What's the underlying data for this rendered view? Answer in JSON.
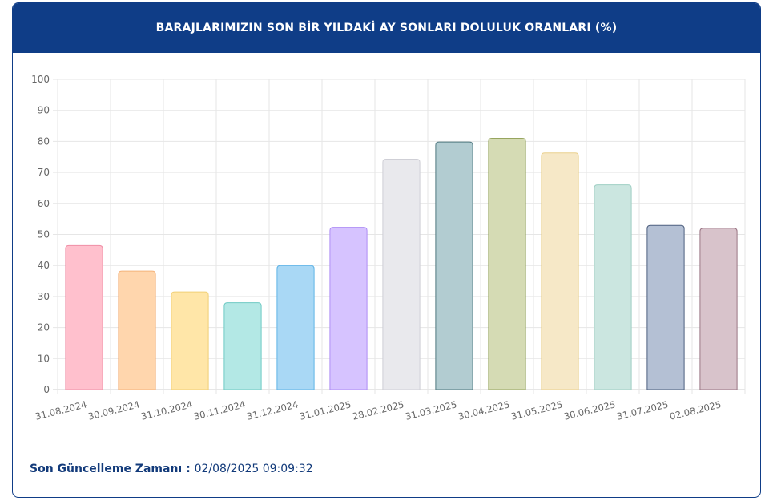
{
  "header": {
    "title": "BARAJLARIMIZIN SON BİR YILDAKİ AY SONLARI DOLULUK ORANLARI (%)"
  },
  "footer": {
    "label": "Son Güncelleme Zamanı",
    "separator": " : ",
    "value": "02/08/2025 09:09:32"
  },
  "chart_data": {
    "type": "bar",
    "title": "BARAJLARIMIZIN SON BİR YILDAKİ AY SONLARI DOLULUK ORANLARI (%)",
    "xlabel": "",
    "ylabel": "",
    "ylim": [
      0,
      100
    ],
    "yticks": [
      0,
      10,
      20,
      30,
      40,
      50,
      60,
      70,
      80,
      90,
      100
    ],
    "grid": true,
    "legend": "none",
    "categories": [
      "31.08.2024",
      "30.09.2024",
      "31.10.2024",
      "30.11.2024",
      "31.12.2024",
      "31.01.2025",
      "28.02.2025",
      "31.03.2025",
      "30.04.2025",
      "31.05.2025",
      "30.06.2025",
      "31.07.2025",
      "02.08.2025"
    ],
    "values": [
      46.4,
      38.2,
      31.5,
      28.0,
      40.0,
      52.3,
      74.3,
      79.8,
      81.0,
      76.3,
      66.0,
      52.9,
      52.0
    ],
    "colors": [
      {
        "fill": "#ffc0cd",
        "stroke": "#ef8fa6"
      },
      {
        "fill": "#ffd6ad",
        "stroke": "#f4b27a"
      },
      {
        "fill": "#ffe6a8",
        "stroke": "#f1cf74"
      },
      {
        "fill": "#b3e8e5",
        "stroke": "#6fcac4"
      },
      {
        "fill": "#a9d8f5",
        "stroke": "#5fb3e6"
      },
      {
        "fill": "#d6c3ff",
        "stroke": "#ad8cf5"
      },
      {
        "fill": "#e9e9ed",
        "stroke": "#cfcfd6"
      },
      {
        "fill": "#b2ccd1",
        "stroke": "#4f7880"
      },
      {
        "fill": "#d5dbb4",
        "stroke": "#97a55f"
      },
      {
        "fill": "#f6e8c7",
        "stroke": "#ead08d"
      },
      {
        "fill": "#cbe6e0",
        "stroke": "#9fcfc4"
      },
      {
        "fill": "#b4c0d4",
        "stroke": "#4d5f7e"
      },
      {
        "fill": "#d8c3cb",
        "stroke": "#9a7584"
      }
    ]
  }
}
